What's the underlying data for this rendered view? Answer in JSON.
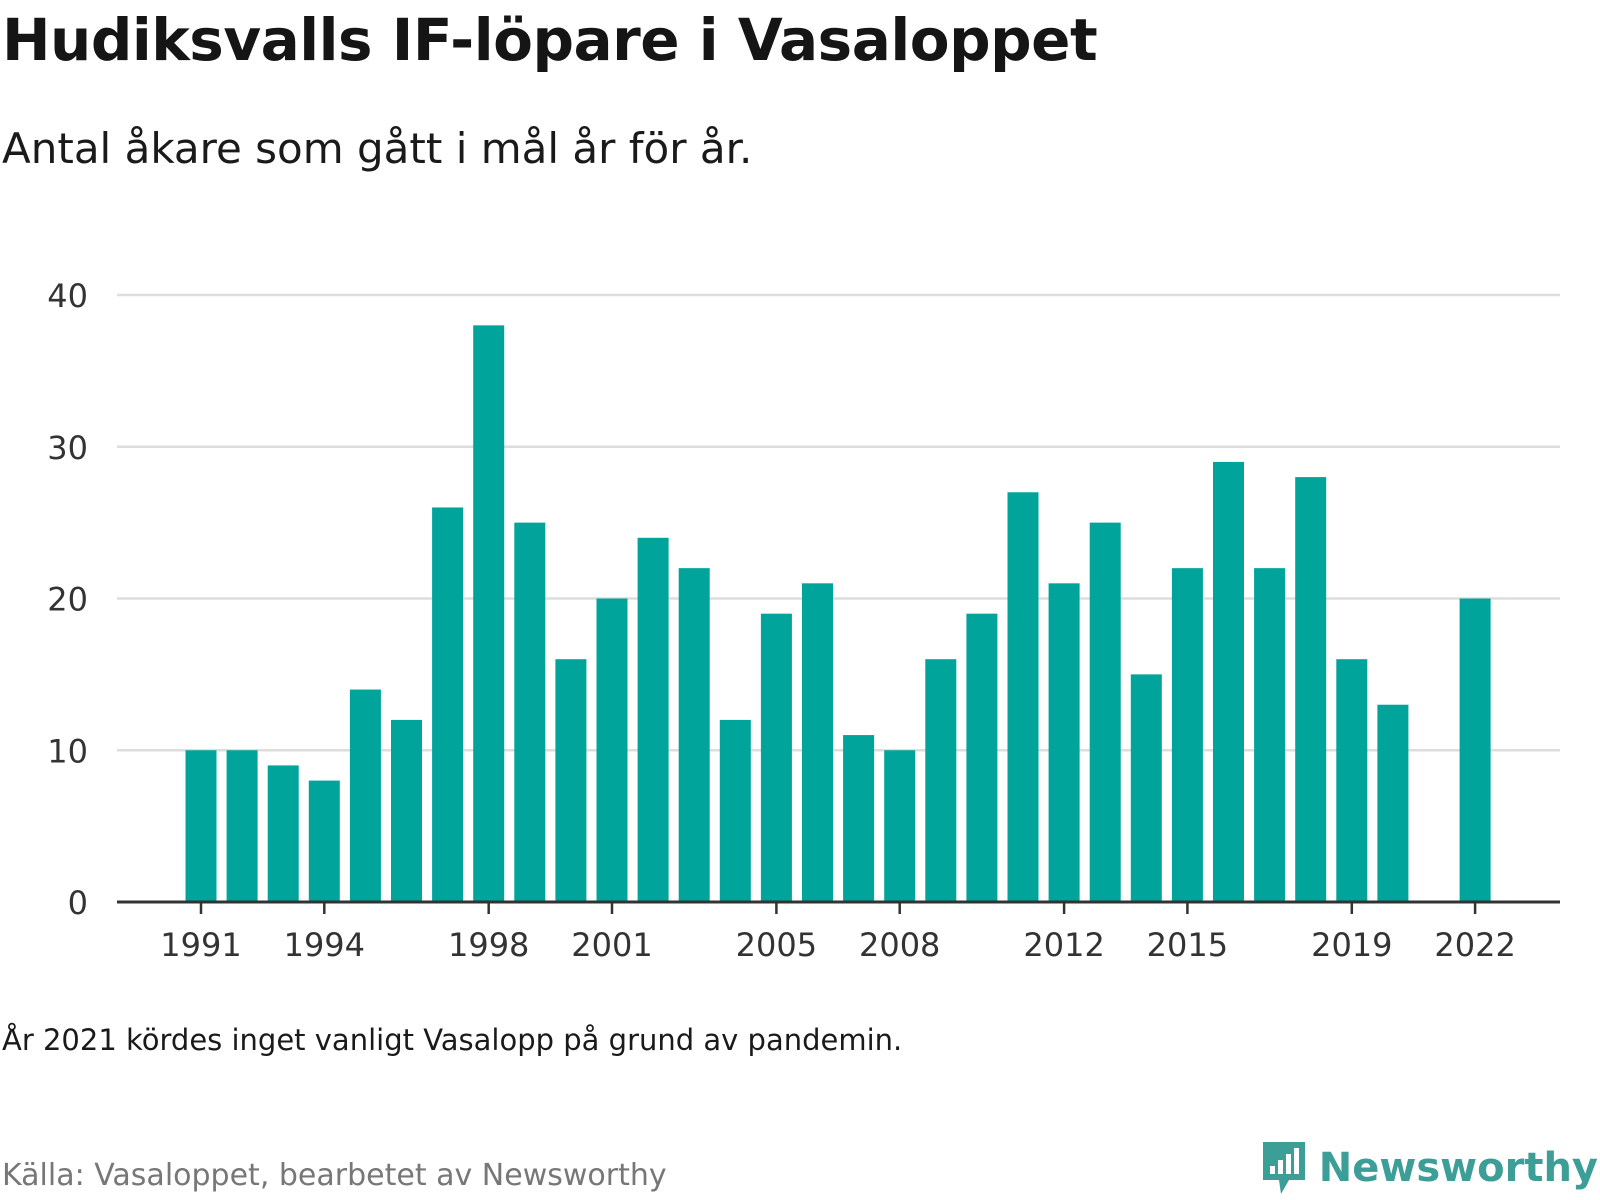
{
  "title": "Hudiksvalls IF-löpare i Vasaloppet",
  "subtitle": "Antal åkare som gått i mål år för år.",
  "note": "År 2021 kördes inget vanligt Vasalopp på grund av pandemin.",
  "source": "Källa: Vasaloppet, bearbetet av Newsworthy",
  "brand": {
    "name": "Newsworthy",
    "icon": "newsworthy-logo-icon"
  },
  "colors": {
    "bar": "#00a49a",
    "grid": "#dddddd",
    "axis": "#333333",
    "brand": "#3c9e96"
  },
  "chart_data": {
    "type": "bar",
    "categories": [
      "1991",
      "1992",
      "1993",
      "1994",
      "1995",
      "1996",
      "1997",
      "1998",
      "1999",
      "2000",
      "2001",
      "2002",
      "2003",
      "2004",
      "2005",
      "2006",
      "2007",
      "2008",
      "2009",
      "2010",
      "2011",
      "2012",
      "2013",
      "2014",
      "2015",
      "2016",
      "2017",
      "2018",
      "2019",
      "2020",
      "2021",
      "2022"
    ],
    "values": [
      10,
      10,
      9,
      8,
      14,
      12,
      26,
      38,
      25,
      16,
      20,
      24,
      22,
      12,
      19,
      21,
      11,
      10,
      16,
      19,
      27,
      21,
      25,
      15,
      22,
      29,
      22,
      28,
      16,
      13,
      null,
      20
    ],
    "x_tick_labels": [
      "1991",
      "1994",
      "1998",
      "2001",
      "2005",
      "2008",
      "2012",
      "2015",
      "2019",
      "2022"
    ],
    "y_ticks": [
      0,
      10,
      20,
      30,
      40
    ],
    "ylim": [
      0,
      40
    ],
    "grid": true,
    "legend": "none"
  }
}
